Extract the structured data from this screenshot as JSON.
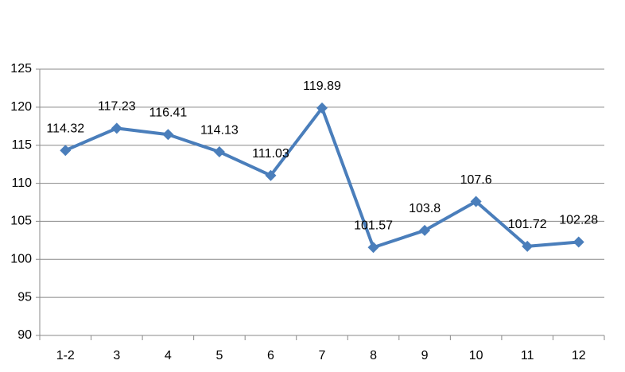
{
  "chart_data": {
    "type": "line",
    "categories": [
      "1-2",
      "3",
      "4",
      "5",
      "6",
      "7",
      "8",
      "9",
      "10",
      "11",
      "12"
    ],
    "values": [
      114.32,
      117.23,
      116.41,
      114.13,
      111.03,
      119.89,
      101.57,
      103.8,
      107.6,
      101.72,
      102.28
    ],
    "color": "#4a7ebb",
    "ylim": [
      90,
      125
    ],
    "yticks": [
      90,
      95,
      100,
      105,
      110,
      115,
      120,
      125
    ],
    "grid": true
  }
}
